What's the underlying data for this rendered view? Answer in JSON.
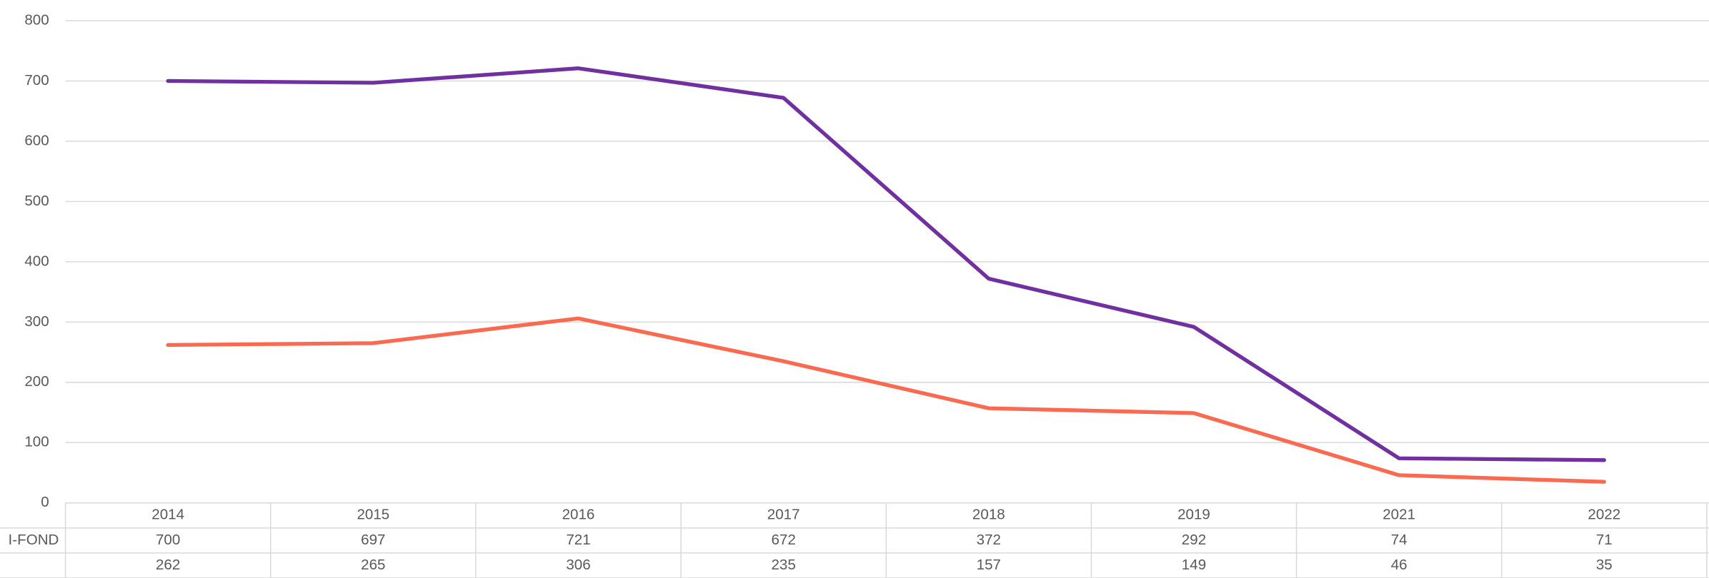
{
  "chart_data": {
    "type": "line",
    "categories": [
      "2014",
      "2015",
      "2016",
      "2017",
      "2018",
      "2019",
      "2021",
      "2022"
    ],
    "series": [
      {
        "name": "I-FOND",
        "color": "#7030a0",
        "values": [
          700,
          697,
          721,
          672,
          372,
          292,
          74,
          71
        ]
      },
      {
        "color": "#f96a50",
        "values": [
          262,
          265,
          306,
          235,
          157,
          149,
          46,
          35
        ]
      }
    ],
    "ylim": [
      0,
      800
    ],
    "yticks": [
      0,
      100,
      200,
      300,
      400,
      500,
      600,
      700,
      800
    ],
    "grid": true
  }
}
